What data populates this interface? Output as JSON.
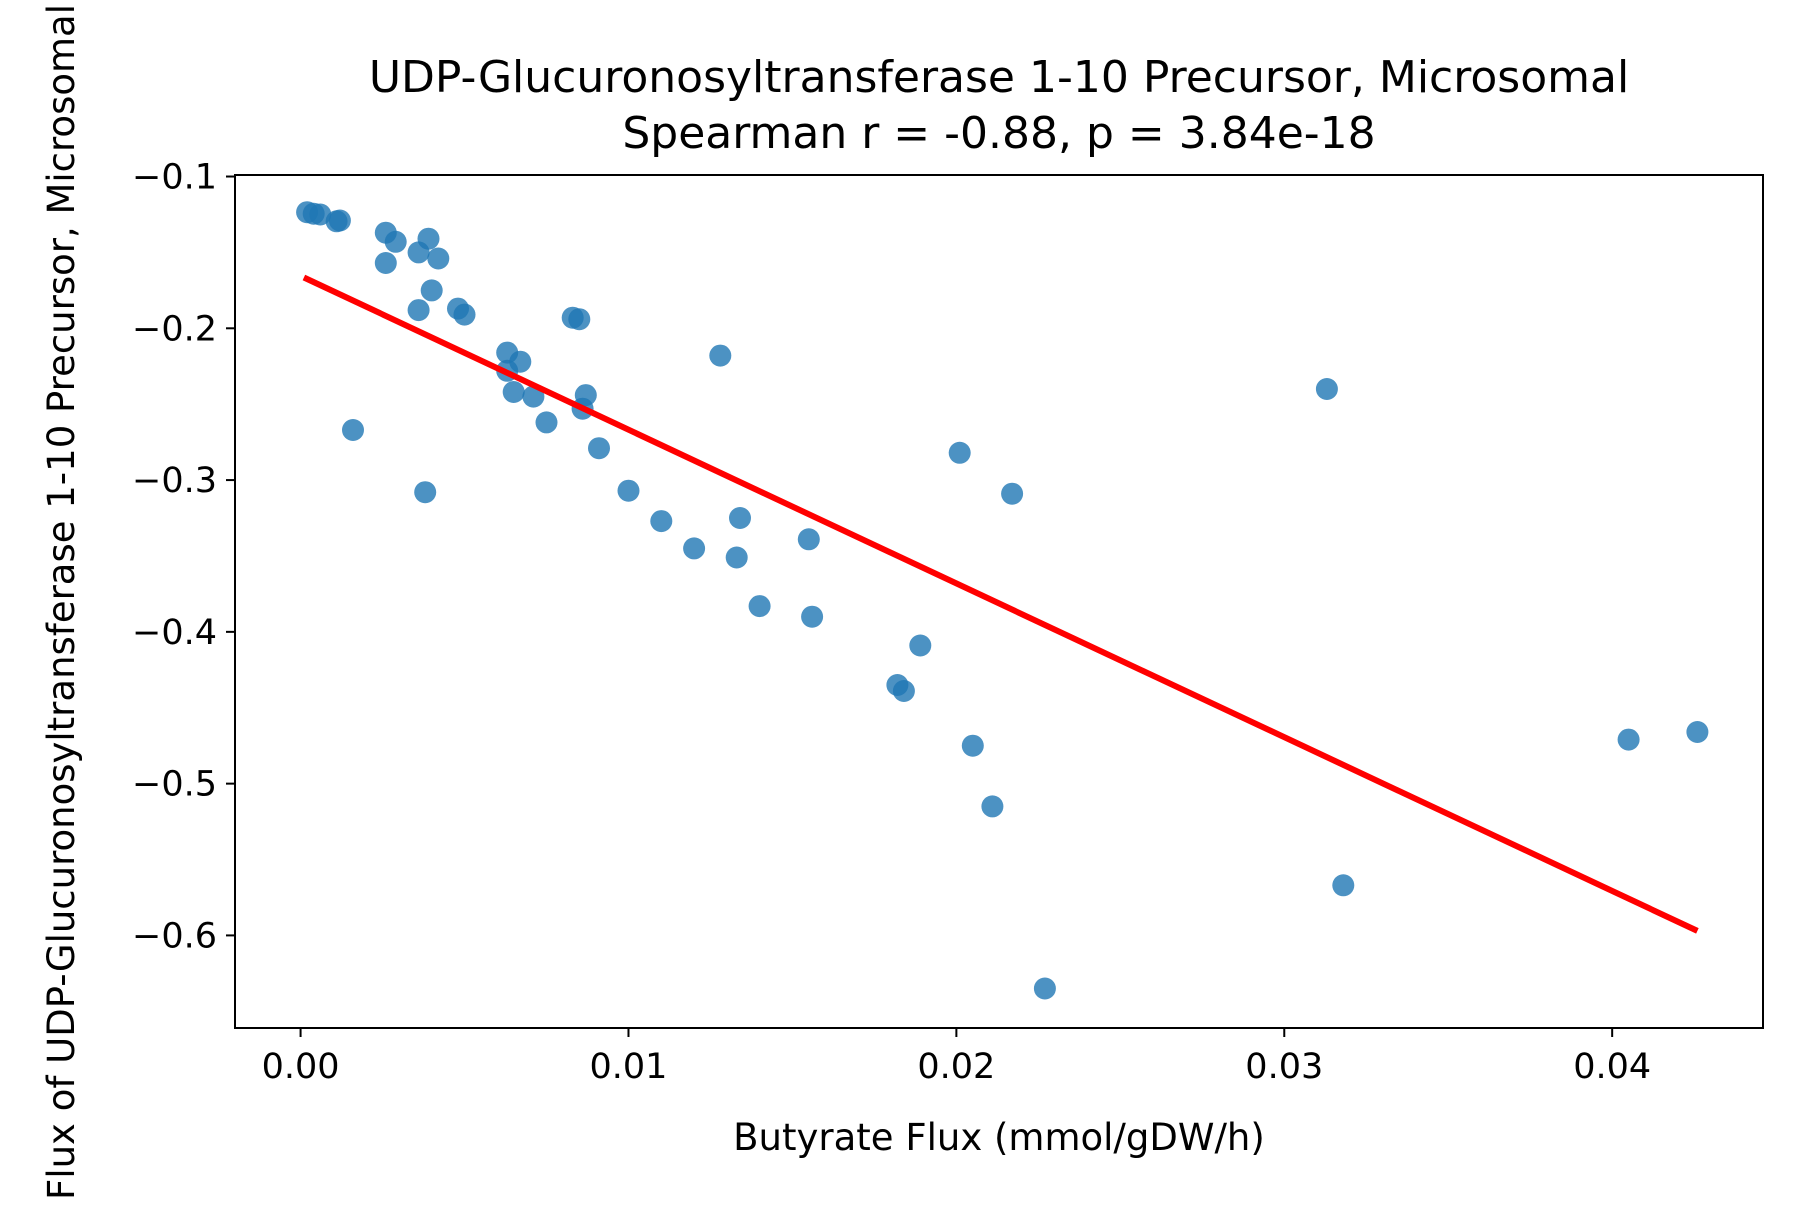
{
  "chart_data": {
    "type": "scatter",
    "title": "UDP-Glucuronosyltransferase 1-10 Precursor, Microsomal",
    "subtitle": "Spearman r = -0.88, p = 3.84e-18",
    "xlabel": "Butyrate Flux (mmol/gDW/h)",
    "ylabel": "Flux of UDP-Glucuronosyltransferase 1-10 Precursor, Microsomal",
    "xlim": [
      -0.002,
      0.0446
    ],
    "ylim": [
      -0.661,
      -0.099
    ],
    "xticks": [
      0.0,
      0.01,
      0.02,
      0.03,
      0.04
    ],
    "xtick_labels": [
      "0.00",
      "0.01",
      "0.02",
      "0.03",
      "0.04"
    ],
    "yticks": [
      -0.1,
      -0.2,
      -0.3,
      -0.4,
      -0.5,
      -0.6
    ],
    "ytick_labels": [
      "−0.1",
      "−0.2",
      "−0.3",
      "−0.4",
      "−0.5",
      "−0.6"
    ],
    "grid": false,
    "point_color": "#1f77b4",
    "line_color": "#ff0000",
    "points": [
      [
        0.0002,
        -0.1235
      ],
      [
        0.0004,
        -0.1245
      ],
      [
        0.0006,
        -0.125
      ],
      [
        0.0011,
        -0.1295
      ],
      [
        0.0012,
        -0.129
      ],
      [
        0.0016,
        -0.267
      ],
      [
        0.0026,
        -0.137
      ],
      [
        0.0026,
        -0.157
      ],
      [
        0.0029,
        -0.143
      ],
      [
        0.0036,
        -0.15
      ],
      [
        0.0036,
        -0.188
      ],
      [
        0.0038,
        -0.308
      ],
      [
        0.0039,
        -0.141
      ],
      [
        0.004,
        -0.175
      ],
      [
        0.0042,
        -0.154
      ],
      [
        0.0048,
        -0.187
      ],
      [
        0.005,
        -0.191
      ],
      [
        0.0063,
        -0.216
      ],
      [
        0.0063,
        -0.228
      ],
      [
        0.0065,
        -0.242
      ],
      [
        0.0067,
        -0.222
      ],
      [
        0.0071,
        -0.245
      ],
      [
        0.0075,
        -0.262
      ],
      [
        0.0083,
        -0.193
      ],
      [
        0.0085,
        -0.194
      ],
      [
        0.0086,
        -0.253
      ],
      [
        0.0087,
        -0.244
      ],
      [
        0.0091,
        -0.279
      ],
      [
        0.01,
        -0.307
      ],
      [
        0.011,
        -0.327
      ],
      [
        0.012,
        -0.345
      ],
      [
        0.0128,
        -0.218
      ],
      [
        0.0133,
        -0.351
      ],
      [
        0.0134,
        -0.325
      ],
      [
        0.014,
        -0.383
      ],
      [
        0.0155,
        -0.339
      ],
      [
        0.0156,
        -0.39
      ],
      [
        0.0182,
        -0.435
      ],
      [
        0.0184,
        -0.439
      ],
      [
        0.0189,
        -0.409
      ],
      [
        0.0201,
        -0.282
      ],
      [
        0.0205,
        -0.475
      ],
      [
        0.0211,
        -0.515
      ],
      [
        0.0217,
        -0.309
      ],
      [
        0.0227,
        -0.635
      ],
      [
        0.0313,
        -0.24
      ],
      [
        0.0318,
        -0.567
      ],
      [
        0.0405,
        -0.471
      ],
      [
        0.0426,
        -0.466
      ]
    ],
    "fit_line": {
      "x": [
        0.0001,
        0.0426
      ],
      "y": [
        -0.1665,
        -0.597
      ]
    }
  }
}
